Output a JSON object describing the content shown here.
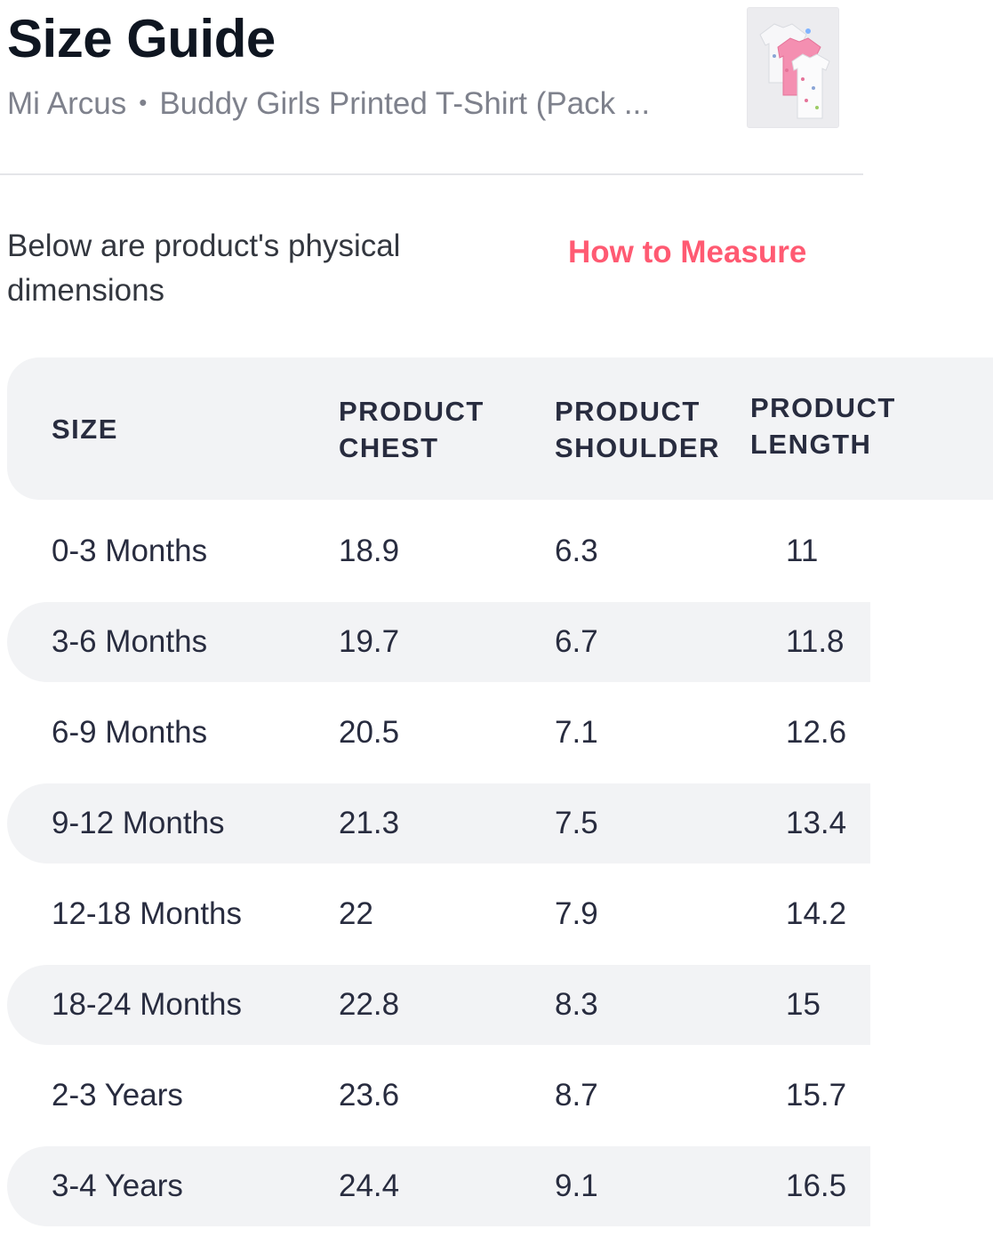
{
  "header": {
    "title": "Size Guide",
    "brand": "Mi Arcus",
    "separator": "•",
    "product_name": "Buddy Girls Printed T-Shirt (Pack ...",
    "thumbnail_icon": "product-thumbnail"
  },
  "intro": {
    "description": "Below are product's physical dimensions",
    "how_to_measure": "How to Measure"
  },
  "table": {
    "headers": {
      "size": "SIZE",
      "chest_1": "PRODUCT",
      "chest_2": "CHEST",
      "shoulder_1": "PRODUCT",
      "shoulder_2": "SHOULDER",
      "length_1": "PRODUCT",
      "length_2": "LENGTH"
    },
    "rows": [
      {
        "size": "0-3 Months",
        "chest": "18.9",
        "shoulder": "6.3",
        "length": "11"
      },
      {
        "size": "3-6 Months",
        "chest": "19.7",
        "shoulder": "6.7",
        "length": "11.8"
      },
      {
        "size": "6-9 Months",
        "chest": "20.5",
        "shoulder": "7.1",
        "length": "12.6"
      },
      {
        "size": "9-12 Months",
        "chest": "21.3",
        "shoulder": "7.5",
        "length": "13.4"
      },
      {
        "size": "12-18 Months",
        "chest": "22",
        "shoulder": "7.9",
        "length": "14.2"
      },
      {
        "size": "18-24 Months",
        "chest": "22.8",
        "shoulder": "8.3",
        "length": "15"
      },
      {
        "size": "2-3 Years",
        "chest": "23.6",
        "shoulder": "8.7",
        "length": "15.7"
      },
      {
        "size": "3-4 Years",
        "chest": "24.4",
        "shoulder": "9.1",
        "length": "16.5"
      }
    ]
  },
  "colors": {
    "accent": "#ff5a72",
    "row_shade": "#f2f3f5",
    "text": "#282c3f",
    "muted": "#7e818c"
  }
}
